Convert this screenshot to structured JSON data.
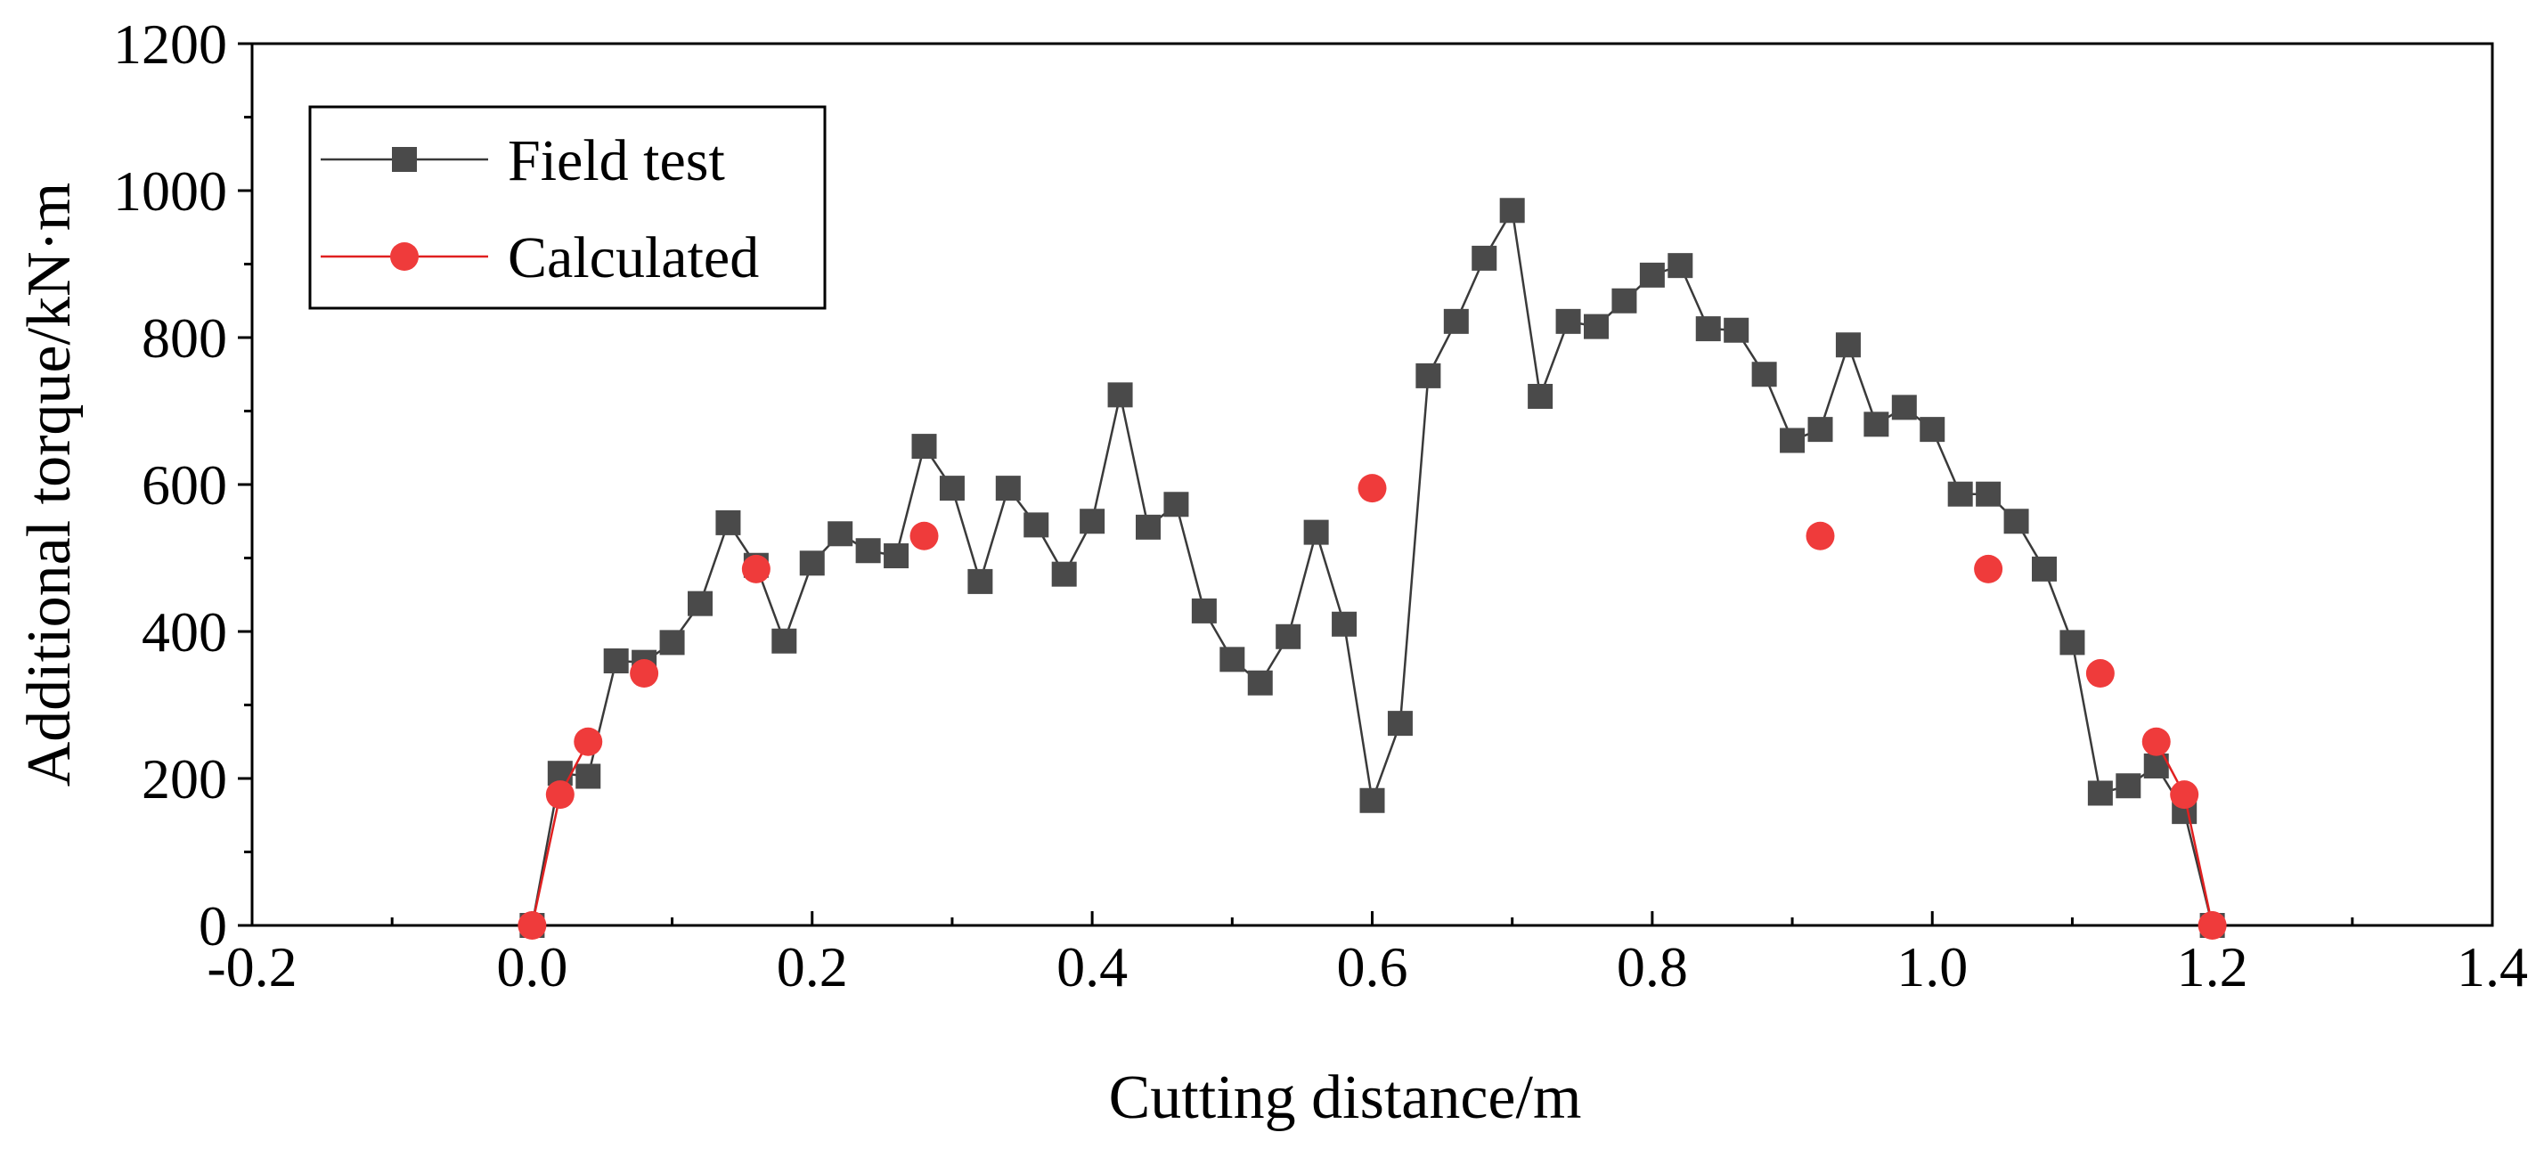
{
  "chart_data": {
    "type": "line",
    "xlabel": "Cutting distance/m",
    "ylabel": "Additional torque/kN·m",
    "xlim": [
      -0.2,
      1.4
    ],
    "ylim": [
      0,
      1200
    ],
    "x_ticks": [
      -0.2,
      0.0,
      0.2,
      0.4,
      0.6,
      0.8,
      1.0,
      1.2,
      1.4
    ],
    "x_tick_labels": [
      "-0.2",
      "0.0",
      "0.2",
      "0.4",
      "0.6",
      "0.8",
      "1.0",
      "1.2",
      "1.4"
    ],
    "y_ticks": [
      0,
      200,
      400,
      600,
      800,
      1000,
      1200
    ],
    "y_tick_labels": [
      "0",
      "200",
      "400",
      "600",
      "800",
      "1000",
      "1200"
    ],
    "legend_position": "top-left",
    "series": [
      {
        "name": "Field test",
        "marker": "square",
        "color": "#4a4a4a",
        "line_color": "#3a3a3a",
        "x": [
          0.0,
          0.02,
          0.04,
          0.06,
          0.08,
          0.1,
          0.12,
          0.14,
          0.16,
          0.18,
          0.2,
          0.22,
          0.24,
          0.26,
          0.28,
          0.3,
          0.32,
          0.34,
          0.36,
          0.38,
          0.4,
          0.42,
          0.44,
          0.46,
          0.48,
          0.5,
          0.52,
          0.54,
          0.56,
          0.58,
          0.6,
          0.62,
          0.64,
          0.66,
          0.68,
          0.7,
          0.72,
          0.74,
          0.76,
          0.78,
          0.8,
          0.82,
          0.84,
          0.86,
          0.88,
          0.9,
          0.92,
          0.94,
          0.96,
          0.98,
          1.0,
          1.02,
          1.04,
          1.06,
          1.08,
          1.1,
          1.12,
          1.14,
          1.16,
          1.18,
          1.2
        ],
        "y": [
          0,
          207,
          203,
          360,
          358,
          385,
          438,
          548,
          490,
          387,
          493,
          533,
          510,
          503,
          652,
          595,
          468,
          595,
          545,
          478,
          550,
          722,
          542,
          573,
          428,
          362,
          330,
          393,
          535,
          410,
          170,
          275,
          748,
          822,
          908,
          973,
          720,
          822,
          815,
          850,
          885,
          898,
          812,
          810,
          750,
          660,
          675,
          790,
          682,
          705,
          675,
          587,
          587,
          550,
          485,
          385,
          180,
          190,
          217,
          155,
          0
        ]
      },
      {
        "name": "Calculated",
        "marker": "circle",
        "color": "#ef3b3b",
        "line_color": "#e02020",
        "x": [
          0.0,
          0.02,
          0.04,
          0.08,
          0.16,
          0.28,
          0.6,
          0.92,
          1.04,
          1.12,
          1.16,
          1.18,
          1.2
        ],
        "y": [
          0,
          178,
          250,
          343,
          485,
          530,
          595,
          530,
          485,
          343,
          250,
          178,
          0
        ],
        "connect_indices": [
          [
            0,
            1
          ],
          [
            1,
            2
          ],
          [
            10,
            11
          ],
          [
            11,
            12
          ]
        ]
      }
    ]
  }
}
